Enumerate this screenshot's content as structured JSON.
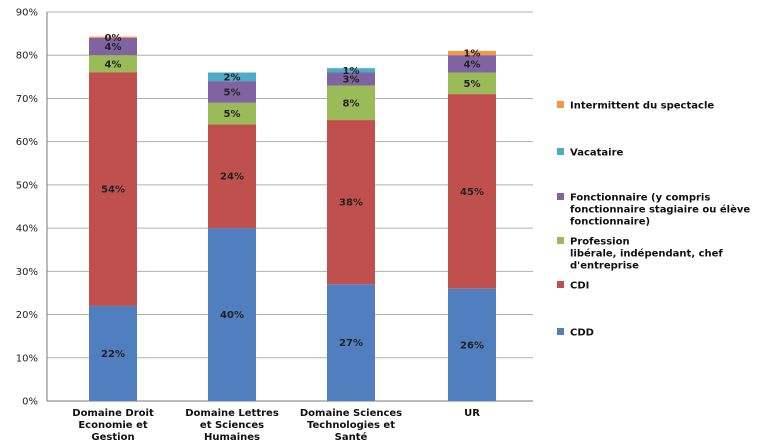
{
  "chart_data": {
    "type": "bar",
    "stacked": true,
    "categories": [
      [
        "Domaine Droit",
        "Economie et",
        "Gestion"
      ],
      [
        "Domaine Lettres",
        "et Sciences",
        "Humaines"
      ],
      [
        "Domaine Sciences",
        "Technologies et",
        "Santé"
      ],
      [
        "UR"
      ]
    ],
    "y_ticks": [
      "0%",
      "10%",
      "20%",
      "30%",
      "40%",
      "50%",
      "60%",
      "70%",
      "80%",
      "90%"
    ],
    "ylim": [
      0,
      90
    ],
    "grid": true,
    "legend_position": "right",
    "series": [
      {
        "name": "CDD",
        "color": "#4f7fbf",
        "values": [
          22,
          40,
          27,
          26
        ],
        "labels": [
          "22%",
          "40%",
          "27%",
          "26%"
        ]
      },
      {
        "name": "CDI",
        "color": "#c0504d",
        "values": [
          54,
          24,
          38,
          45
        ],
        "labels": [
          "54%",
          "24%",
          "38%",
          "45%"
        ]
      },
      {
        "name": "Profession libérale, indépendant, chef d'entreprise",
        "legend_lines": [
          "Profession",
          "libérale, indépendant, chef",
          "d'entreprise"
        ],
        "color": "#9bbb59",
        "values": [
          4,
          5,
          8,
          5
        ],
        "labels": [
          "4%",
          "5%",
          "8%",
          "5%"
        ]
      },
      {
        "name": "Fonctionnaire (y compris fonctionnaire stagiaire ou élève fonctionnaire)",
        "legend_lines": [
          "Fonctionnaire (y compris",
          "fonctionnaire stagiaire ou élève",
          "fonctionnaire)"
        ],
        "color": "#8064a2",
        "values": [
          4,
          5,
          3,
          4
        ],
        "labels": [
          "4%",
          "5%",
          "3%",
          "4%"
        ]
      },
      {
        "name": "Vacataire",
        "color": "#4bacc6",
        "values": [
          0,
          2,
          1,
          0
        ],
        "labels": [
          "",
          "2%",
          "1%",
          ""
        ]
      },
      {
        "name": "Intermittent du spectacle",
        "color": "#f79646",
        "values": [
          0.3,
          0,
          0,
          1
        ],
        "labels": [
          "0%",
          "",
          "",
          "1%"
        ]
      }
    ],
    "legend_order": [
      5,
      4,
      3,
      2,
      1,
      0
    ]
  }
}
